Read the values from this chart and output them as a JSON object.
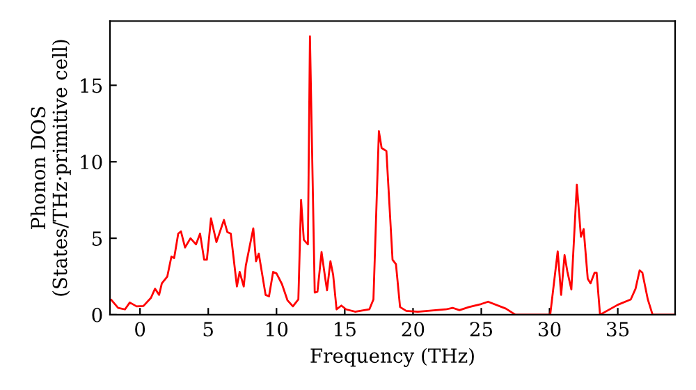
{
  "chart_data": {
    "type": "line",
    "xlabel": "Frequency (THz)",
    "ylabel": "Phonon DOS\n(States/THz·primitive cell)",
    "xlim": [
      -2.2,
      39.2
    ],
    "ylim": [
      0,
      19.2
    ],
    "xticks": [
      0,
      5,
      10,
      15,
      20,
      25,
      30,
      35
    ],
    "yticks": [
      0,
      5,
      10,
      15
    ],
    "grid": false,
    "legend": false,
    "marker": "none",
    "line_style": "solid",
    "series": [
      {
        "color": "#ff0000",
        "x": [
          -2.1,
          -1.6,
          -1.1,
          -0.75,
          -0.25,
          0.25,
          0.8,
          1.1,
          1.4,
          1.6,
          2.0,
          2.3,
          2.5,
          2.8,
          3.0,
          3.3,
          3.7,
          4.1,
          4.4,
          4.7,
          4.9,
          5.2,
          5.6,
          6.15,
          6.4,
          6.65,
          7.1,
          7.3,
          7.6,
          7.75,
          8.3,
          8.5,
          8.7,
          9.2,
          9.45,
          9.75,
          10.0,
          10.4,
          10.8,
          11.2,
          11.6,
          11.8,
          12.0,
          12.3,
          12.45,
          12.8,
          13.0,
          13.3,
          13.55,
          13.7,
          13.95,
          14.15,
          14.4,
          14.75,
          15.1,
          15.75,
          16.8,
          17.1,
          17.5,
          17.7,
          18.05,
          18.5,
          18.75,
          19.05,
          19.5,
          20.35,
          22.4,
          22.9,
          23.4,
          23.75,
          24.1,
          25.0,
          25.5,
          26.8,
          27.5,
          30.05,
          30.6,
          30.85,
          31.1,
          31.3,
          31.6,
          32.0,
          32.3,
          32.5,
          32.8,
          33.0,
          33.3,
          33.45,
          33.7,
          35.0,
          35.95,
          36.3,
          36.6,
          36.8,
          37.2,
          37.55,
          39.2
        ],
        "values": [
          0.97,
          0.45,
          0.35,
          0.8,
          0.55,
          0.57,
          1.1,
          1.7,
          1.3,
          2.05,
          2.5,
          3.8,
          3.7,
          5.3,
          5.45,
          4.4,
          5.0,
          4.6,
          5.3,
          3.6,
          3.6,
          6.3,
          4.75,
          6.2,
          5.4,
          5.3,
          1.85,
          2.8,
          1.85,
          3.2,
          5.65,
          3.5,
          4.0,
          1.3,
          1.2,
          2.8,
          2.7,
          2.0,
          0.95,
          0.55,
          1.0,
          7.5,
          4.9,
          4.6,
          18.2,
          1.45,
          1.5,
          4.1,
          2.5,
          1.6,
          3.5,
          2.6,
          0.35,
          0.6,
          0.35,
          0.2,
          0.35,
          1.0,
          12.0,
          10.9,
          10.7,
          3.6,
          3.3,
          0.5,
          0.25,
          0.2,
          0.35,
          0.45,
          0.3,
          0.4,
          0.5,
          0.7,
          0.85,
          0.4,
          0.0,
          0.0,
          4.15,
          1.3,
          3.9,
          2.85,
          1.65,
          8.5,
          5.1,
          5.6,
          2.35,
          2.05,
          2.75,
          2.75,
          0.0,
          0.65,
          1.0,
          1.7,
          2.9,
          2.75,
          1.0,
          0.0,
          0.0
        ]
      }
    ]
  }
}
